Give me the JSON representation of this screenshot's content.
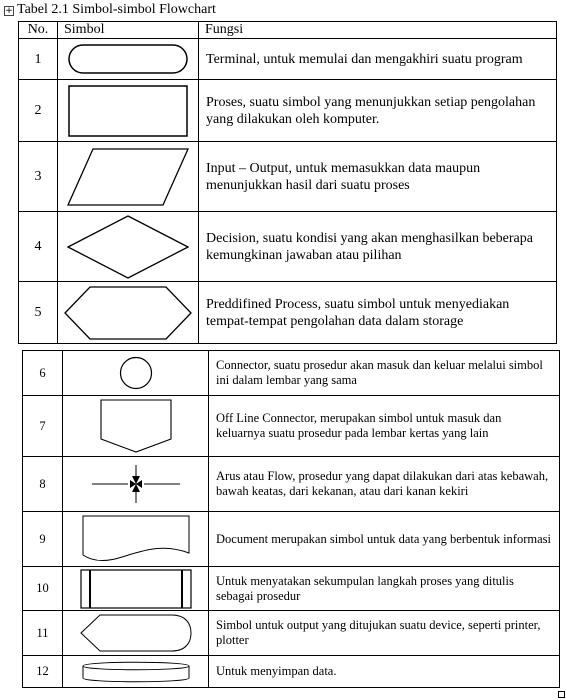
{
  "caption": "Tabel 2.1 Simbol-simbol Flowchart",
  "headers": {
    "no": "No.",
    "symbol": "Simbol",
    "function": "Fungsi"
  },
  "rows": [
    {
      "no": "1",
      "symbol": "terminal-shape",
      "desc": "Terminal, untuk memulai dan mengakhiri suatu program"
    },
    {
      "no": "2",
      "symbol": "process-shape",
      "desc": "Proses, suatu simbol yang menunjukkan setiap pengolahan yang dilakukan oleh komputer."
    },
    {
      "no": "3",
      "symbol": "input-output-shape",
      "desc": "Input – Output, untuk memasukkan data maupun menunjukkan hasil dari suatu proses"
    },
    {
      "no": "4",
      "symbol": "decision-shape",
      "desc": "Decision, suatu kondisi yang akan menghasilkan beberapa kemungkinan jawaban atau pilihan"
    },
    {
      "no": "5",
      "symbol": "predefined-process-shape",
      "desc": "Preddifined Process, suatu simbol untuk menyediakan tempat-tempat pengolahan data dalam storage"
    },
    {
      "no": "6",
      "symbol": "connector-shape",
      "desc": "Connector, suatu prosedur akan masuk dan keluar melalui simbol ini dalam lembar yang sama"
    },
    {
      "no": "7",
      "symbol": "off-line-connector-shape",
      "desc": "Off Line Connector, merupakan simbol untuk masuk dan keluarnya suatu prosedur pada lembar kertas yang lain"
    },
    {
      "no": "8",
      "symbol": "flow-arrows-shape",
      "desc": "Arus atau Flow, prosedur yang dapat dilakukan dari atas kebawah, bawah keatas, dari kekanan, atau dari kanan kekiri"
    },
    {
      "no": "9",
      "symbol": "document-shape",
      "desc": "Document merupakan simbol untuk data yang berbentuk informasi"
    },
    {
      "no": "10",
      "symbol": "subroutine-shape",
      "desc": "Untuk menyatakan sekumpulan langkah proses yang ditulis sebagai prosedur"
    },
    {
      "no": "11",
      "symbol": "display-output-shape",
      "desc": "Simbol untuk output yang ditujukan suatu device, seperti printer, plotter"
    },
    {
      "no": "12",
      "symbol": "storage-cylinder-shape",
      "desc": "Untuk menyimpan data."
    }
  ]
}
